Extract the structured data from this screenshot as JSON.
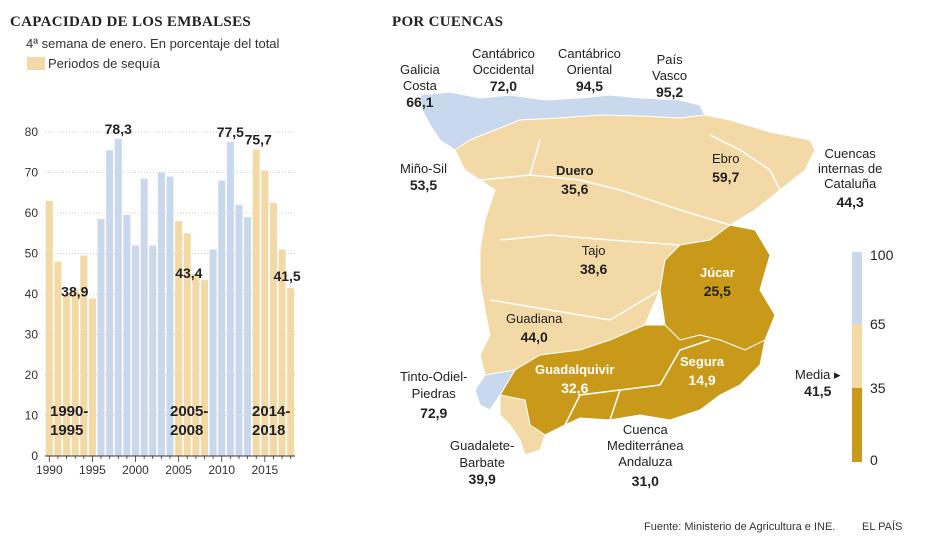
{
  "colors": {
    "drought": "#f2d9a6",
    "normal": "#c9d8ec",
    "low": "#c99a1a",
    "mid": "#f2d9a6",
    "high": "#c9d8ec",
    "text": "#222222",
    "grid": "#999999"
  },
  "left": {
    "title": "CAPACIDAD DE LOS EMBALSES",
    "subtitle": "4ª semana de enero. En porcentaje del total",
    "legend_label": "Periodos de sequía",
    "drought_labels": [
      {
        "l1": "1990-",
        "l2": "1995"
      },
      {
        "l1": "2005-",
        "l2": "2008"
      },
      {
        "l1": "2014-",
        "l2": "2018"
      }
    ]
  },
  "chart_data": {
    "type": "bar",
    "title": "CAPACIDAD DE LOS EMBALSES",
    "subtitle": "4ª semana de enero. En porcentaje del total",
    "ylim": [
      0,
      80
    ],
    "yticks": [
      0,
      10,
      20,
      30,
      40,
      50,
      60,
      70,
      80
    ],
    "xticks": [
      "1990",
      "1995",
      "2000",
      "2005",
      "2010",
      "2015"
    ],
    "categories": [
      "1990",
      "1991",
      "1992",
      "1993",
      "1994",
      "1995",
      "1996",
      "1997",
      "1998",
      "1999",
      "2000",
      "2001",
      "2002",
      "2003",
      "2004",
      "2005",
      "2006",
      "2007",
      "2008",
      "2009",
      "2010",
      "2011",
      "2012",
      "2013",
      "2014",
      "2015",
      "2016",
      "2017",
      "2018"
    ],
    "values": [
      63,
      48,
      40,
      41,
      49.5,
      38.9,
      58.5,
      75.5,
      78.3,
      59.5,
      52,
      68.5,
      52,
      70,
      69,
      58,
      55,
      45,
      43.4,
      51,
      68,
      77.5,
      62,
      59,
      75.7,
      70.5,
      62.5,
      51,
      41.5
    ],
    "drought": [
      true,
      true,
      true,
      true,
      true,
      true,
      false,
      false,
      false,
      false,
      false,
      false,
      false,
      false,
      false,
      true,
      true,
      true,
      true,
      false,
      false,
      false,
      false,
      false,
      true,
      true,
      true,
      true,
      true
    ],
    "value_labels": [
      {
        "year": "1995",
        "text": "38,9"
      },
      {
        "year": "1998",
        "text": "78,3"
      },
      {
        "year": "2008",
        "text": "43,4"
      },
      {
        "year": "2011",
        "text": "77,5"
      },
      {
        "year": "2014",
        "text": "75,7"
      },
      {
        "year": "2018",
        "text": "41,5"
      }
    ]
  },
  "map": {
    "title": "POR CUENCAS",
    "basins": [
      {
        "name": "Galicia\nCosta",
        "value": "66,1"
      },
      {
        "name": "Cantábrico\nOccidental",
        "value": "72,0"
      },
      {
        "name": "Cantábrico\nOriental",
        "value": "94,5"
      },
      {
        "name": "País\nVasco",
        "value": "95,2"
      },
      {
        "name": "Miño-Sil",
        "value": "53,5"
      },
      {
        "name": "Duero",
        "value": "35,6"
      },
      {
        "name": "Ebro",
        "value": "59,7"
      },
      {
        "name": "Cuencas\ninternas de\nCataluña",
        "value": "44,3"
      },
      {
        "name": "Tajo",
        "value": "38,6"
      },
      {
        "name": "Júcar",
        "value": "25,5"
      },
      {
        "name": "Guadiana",
        "value": "44,0"
      },
      {
        "name": "Guadalquivir",
        "value": "32,6"
      },
      {
        "name": "Segura",
        "value": "14,9"
      },
      {
        "name": "Tinto-Odiel-\nPiedras",
        "value": "72,9"
      },
      {
        "name": "Guadalete-\nBarbate",
        "value": "39,9"
      },
      {
        "name": "Cuenca\nMediterránea\nAndaluza",
        "value": "31,0"
      }
    ],
    "scale": {
      "ticks": [
        "100",
        "65",
        "35",
        "0"
      ],
      "media_label": "Media",
      "media_value": "41,5"
    }
  },
  "footer": {
    "source": "Fuente: Ministerio de Agricultura e INE.",
    "brand": "EL PAÍS"
  }
}
